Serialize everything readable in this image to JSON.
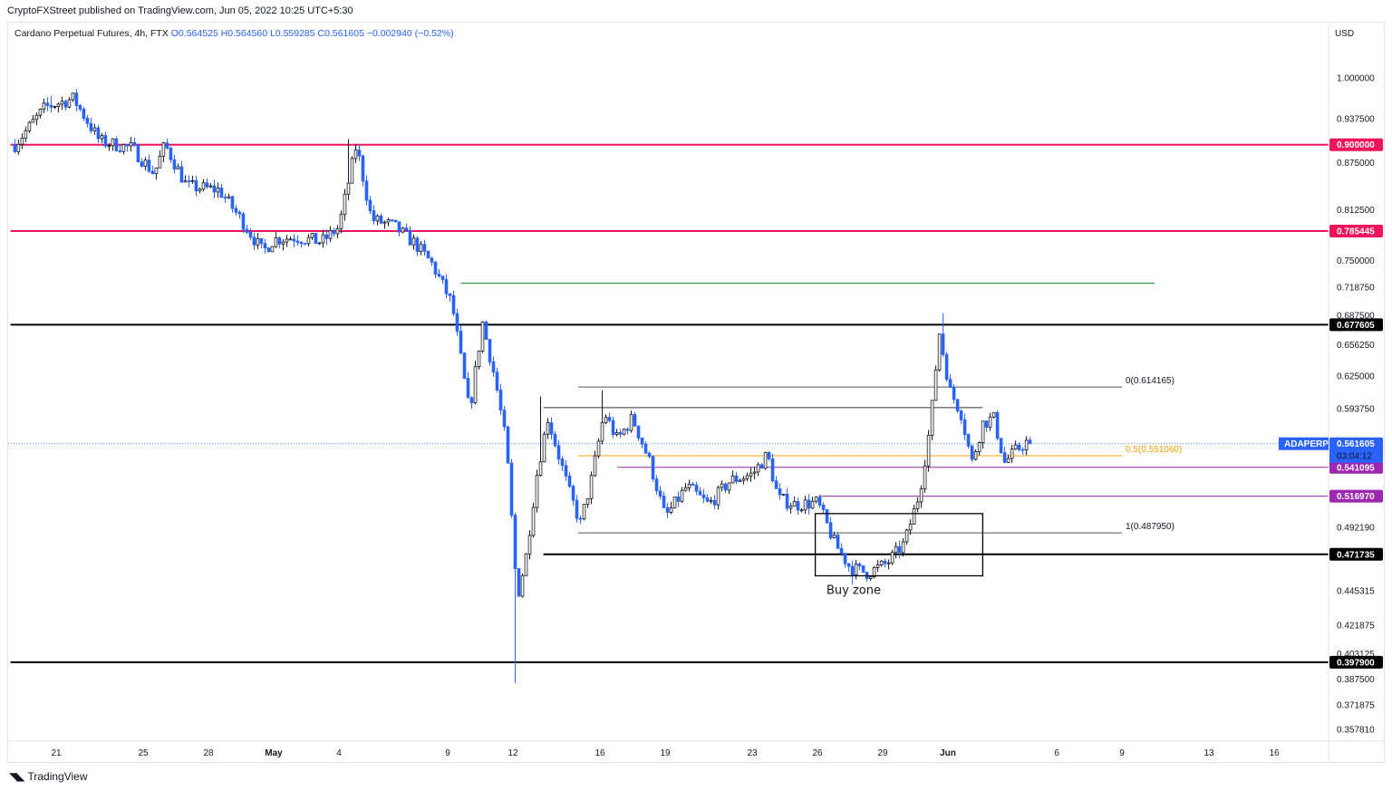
{
  "header": {
    "published_by": "CryptoFXStreet published on TradingView.com, Jun 05, 2022 10:25 UTC+5:30"
  },
  "legend": {
    "symbol": "Cardano Perpetual Futures, 4h, FTX",
    "open": "O0.564525",
    "high": "H0.564560",
    "low": "L0.559285",
    "close": "C0.561605",
    "change": "−0.002940 (−0.52%)"
  },
  "footer": {
    "brand": "TradingView"
  },
  "chart_data": {
    "type": "candlestick",
    "ticker": "ADAPERP",
    "timeframe": "4h",
    "exchange": "FTX",
    "currency": "USD",
    "y_scale": "log",
    "ylim": [
      0.345,
      1.075
    ],
    "x_ticks": [
      {
        "label": "21",
        "day": 21
      },
      {
        "label": "25",
        "day": 25
      },
      {
        "label": "28",
        "day": 28
      },
      {
        "label": "May",
        "day": 31
      },
      {
        "label": "4",
        "day": 34
      },
      {
        "label": "9",
        "day": 39
      },
      {
        "label": "12",
        "day": 42
      },
      {
        "label": "16",
        "day": 46
      },
      {
        "label": "19",
        "day": 49
      },
      {
        "label": "23",
        "day": 53
      },
      {
        "label": "26",
        "day": 56
      },
      {
        "label": "29",
        "day": 59
      },
      {
        "label": "Jun",
        "day": 62
      },
      {
        "label": "6",
        "day": 67
      },
      {
        "label": "9",
        "day": 70
      },
      {
        "label": "13",
        "day": 74
      },
      {
        "label": "16",
        "day": 77
      }
    ],
    "y_ticks": [
      "1.000000",
      "0.937500",
      "0.875000",
      "0.812500",
      "0.750000",
      "0.718750",
      "0.687500",
      "0.656250",
      "0.625000",
      "0.593750",
      "0.492190",
      "0.445315",
      "0.421875",
      "0.403125",
      "0.387500",
      "0.371875",
      "0.357810"
    ],
    "price_path": [
      {
        "day": 19.1,
        "close": 0.9
      },
      {
        "day": 20.5,
        "close": 0.955
      },
      {
        "day": 21.8,
        "close": 0.968
      },
      {
        "day": 23.0,
        "close": 0.905
      },
      {
        "day": 24.5,
        "close": 0.895
      },
      {
        "day": 25.5,
        "close": 0.86
      },
      {
        "day": 26.0,
        "close": 0.9
      },
      {
        "day": 27.0,
        "close": 0.843
      },
      {
        "day": 28.5,
        "close": 0.838
      },
      {
        "day": 29.5,
        "close": 0.8
      },
      {
        "day": 30.5,
        "close": 0.76
      },
      {
        "day": 31.0,
        "close": 0.775
      },
      {
        "day": 32.0,
        "close": 0.778
      },
      {
        "day": 33.2,
        "close": 0.772
      },
      {
        "day": 34.0,
        "close": 0.79
      },
      {
        "day": 34.8,
        "close": 0.9
      },
      {
        "day": 35.5,
        "close": 0.8
      },
      {
        "day": 36.5,
        "close": 0.792
      },
      {
        "day": 37.5,
        "close": 0.77
      },
      {
        "day": 38.3,
        "close": 0.745
      },
      {
        "day": 39.2,
        "close": 0.7
      },
      {
        "day": 40.0,
        "close": 0.59
      },
      {
        "day": 40.6,
        "close": 0.68
      },
      {
        "day": 41.2,
        "close": 0.62
      },
      {
        "day": 41.7,
        "close": 0.56
      },
      {
        "day": 42.2,
        "close": 0.44
      },
      {
        "day": 42.6,
        "close": 0.47
      },
      {
        "day": 43.1,
        "close": 0.535
      },
      {
        "day": 43.6,
        "close": 0.585
      },
      {
        "day": 44.6,
        "close": 0.52
      },
      {
        "day": 45.1,
        "close": 0.495
      },
      {
        "day": 45.6,
        "close": 0.53
      },
      {
        "day": 46.2,
        "close": 0.59
      },
      {
        "day": 46.8,
        "close": 0.565
      },
      {
        "day": 47.5,
        "close": 0.585
      },
      {
        "day": 48.3,
        "close": 0.545
      },
      {
        "day": 49.0,
        "close": 0.5
      },
      {
        "day": 50.0,
        "close": 0.525
      },
      {
        "day": 51.0,
        "close": 0.51
      },
      {
        "day": 52.0,
        "close": 0.53
      },
      {
        "day": 53.0,
        "close": 0.535
      },
      {
        "day": 53.7,
        "close": 0.552
      },
      {
        "day": 54.2,
        "close": 0.515
      },
      {
        "day": 55.0,
        "close": 0.51
      },
      {
        "day": 56.0,
        "close": 0.512
      },
      {
        "day": 56.8,
        "close": 0.48
      },
      {
        "day": 57.5,
        "close": 0.462
      },
      {
        "day": 58.3,
        "close": 0.458
      },
      {
        "day": 59.2,
        "close": 0.465
      },
      {
        "day": 60.0,
        "close": 0.48
      },
      {
        "day": 60.7,
        "close": 0.52
      },
      {
        "day": 61.2,
        "close": 0.58
      },
      {
        "day": 61.6,
        "close": 0.67
      },
      {
        "day": 62.1,
        "close": 0.61
      },
      {
        "day": 62.6,
        "close": 0.59
      },
      {
        "day": 63.1,
        "close": 0.545
      },
      {
        "day": 63.6,
        "close": 0.58
      },
      {
        "day": 64.1,
        "close": 0.585
      },
      {
        "day": 64.6,
        "close": 0.545
      },
      {
        "day": 65.1,
        "close": 0.555
      },
      {
        "day": 65.6,
        "close": 0.563
      },
      {
        "day": 65.85,
        "close": 0.5616
      }
    ],
    "extremes": [
      {
        "day": 20.8,
        "high": 0.972
      },
      {
        "day": 34.5,
        "high": 0.908
      },
      {
        "day": 42.15,
        "low": 0.385
      },
      {
        "day": 43.3,
        "high": 0.605
      },
      {
        "day": 46.1,
        "high": 0.611
      },
      {
        "day": 61.8,
        "high": 0.69
      },
      {
        "day": 57.6,
        "low": 0.45
      }
    ],
    "current_price": {
      "label": "ADAPERP",
      "value": "0.561605",
      "countdown": "03:04:12",
      "value_num": 0.561605,
      "day_end": 65.9
    },
    "horizontal_levels": [
      {
        "value": 0.9,
        "label": "0.900000",
        "color": "#f0145a",
        "from_day": 18.9
      },
      {
        "value": 0.785445,
        "label": "0.785445",
        "color": "#f0145a",
        "from_day": 18.9
      },
      {
        "value": 0.677605,
        "label": "0.677605",
        "color": "#000000",
        "from_day": 18.9
      },
      {
        "value": 0.471735,
        "label": "0.471735",
        "color": "#000000",
        "from_day": 43.4
      },
      {
        "value": 0.3979,
        "label": "0.397900",
        "color": "#000000",
        "from_day": 18.9
      },
      {
        "value": 0.541095,
        "label": "0.541095",
        "color": "#9c27b0",
        "from_day": 46.8
      },
      {
        "value": 0.51697,
        "label": "0.516970",
        "color": "#9c27b0",
        "from_day": 56.1
      }
    ],
    "green_line": {
      "value": 0.7235,
      "from_day": 39.6,
      "to_day": 71.5,
      "color": "#2e9e44"
    },
    "fib": {
      "from_day": 45.0,
      "to_day": 70.0,
      "levels": [
        {
          "value": 0.614165,
          "label": "0(0.614165)",
          "color": "#555555"
        },
        {
          "value": 0.55106,
          "label": "0.5(0.551060)",
          "color": "#f59f00"
        },
        {
          "value": 0.48795,
          "label": "1(0.487950)",
          "color": "#555555"
        }
      ]
    },
    "range_line": {
      "value": 0.5945,
      "from_day": 43.4,
      "to_day": 63.6
    },
    "buy_zone": {
      "label": "Buy zone",
      "top": 0.503,
      "bottom": 0.456,
      "from_day": 55.9,
      "to_day": 63.6
    }
  }
}
